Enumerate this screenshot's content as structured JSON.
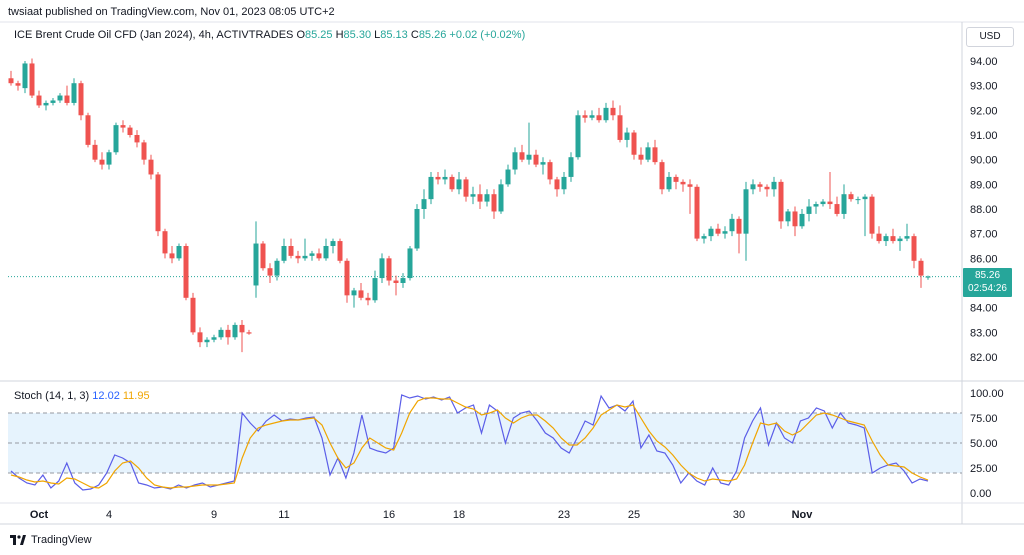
{
  "header": {
    "published": "twsiaat published on TradingView.com, Nov 01, 2023 08:05 UTC+2",
    "symbol": "ICE Brent Crude Oil CFD (Jan 2024), 4h, ACTIVTRADES",
    "o_label": "O",
    "o_value": "85.25",
    "h_label": "H",
    "h_value": "85.30",
    "l_label": "L",
    "l_value": "85.13",
    "c_label": "C",
    "c_value": "85.26",
    "change": "+0.02 (+0.02%)"
  },
  "currency": "USD",
  "last_price": "85.26",
  "countdown": "02:54:26",
  "brand": "TradingView",
  "colors": {
    "up": "#26a69a",
    "down": "#ef5350",
    "k_line": "#5b5ee8",
    "d_line": "#f0a500",
    "band": "#e3f2fd"
  },
  "chart_data": [
    {
      "type": "candlestick",
      "title": "ICE Brent Crude Oil CFD (Jan 2024), 4h, ACTIVTRADES",
      "ylim": [
        81.0,
        95.0
      ],
      "y_ticks": [
        "94.00",
        "93.00",
        "92.00",
        "91.00",
        "90.00",
        "89.00",
        "88.00",
        "87.00",
        "86.00",
        "85.00",
        "84.00",
        "83.00",
        "82.00"
      ],
      "x_ticks": [
        "Oct",
        "4",
        "9",
        "11",
        "16",
        "18",
        "23",
        "25",
        "30",
        "Nov"
      ],
      "x_tick_index": [
        4,
        14,
        29,
        39,
        54,
        64,
        79,
        89,
        104,
        113
      ],
      "last_close": 85.26,
      "candles": [
        [
          93.3,
          93.6,
          93.0,
          93.1
        ],
        [
          93.1,
          93.2,
          92.8,
          93.0
        ],
        [
          92.9,
          94.0,
          92.7,
          93.9
        ],
        [
          93.9,
          94.1,
          92.5,
          92.6
        ],
        [
          92.6,
          92.8,
          92.1,
          92.2
        ],
        [
          92.2,
          92.4,
          92.0,
          92.3
        ],
        [
          92.3,
          92.5,
          92.2,
          92.4
        ],
        [
          92.4,
          92.7,
          92.3,
          92.6
        ],
        [
          92.6,
          93.0,
          92.2,
          92.3
        ],
        [
          92.3,
          93.3,
          92.2,
          93.1
        ],
        [
          93.1,
          93.2,
          91.6,
          91.8
        ],
        [
          91.8,
          91.9,
          90.5,
          90.6
        ],
        [
          90.6,
          90.8,
          89.9,
          90.0
        ],
        [
          90.0,
          90.3,
          89.6,
          89.8
        ],
        [
          89.8,
          90.4,
          89.6,
          90.3
        ],
        [
          90.3,
          91.5,
          90.2,
          91.4
        ],
        [
          91.4,
          91.6,
          91.1,
          91.3
        ],
        [
          91.3,
          91.4,
          90.9,
          91.0
        ],
        [
          91.0,
          91.2,
          90.5,
          90.7
        ],
        [
          90.7,
          90.8,
          89.8,
          90.0
        ],
        [
          90.0,
          90.2,
          89.2,
          89.4
        ],
        [
          89.4,
          89.5,
          86.9,
          87.1
        ],
        [
          87.1,
          87.2,
          86.0,
          86.2
        ],
        [
          86.2,
          86.5,
          85.8,
          86.0
        ],
        [
          86.0,
          86.6,
          85.9,
          86.5
        ],
        [
          86.5,
          86.6,
          84.3,
          84.4
        ],
        [
          84.4,
          84.6,
          82.9,
          83.0
        ],
        [
          83.0,
          83.2,
          82.4,
          82.6
        ],
        [
          82.6,
          82.8,
          82.4,
          82.7
        ],
        [
          82.7,
          82.9,
          82.6,
          82.8
        ],
        [
          82.8,
          83.2,
          82.7,
          83.1
        ],
        [
          83.1,
          83.3,
          82.5,
          82.8
        ],
        [
          82.8,
          83.4,
          82.7,
          83.3
        ],
        [
          83.3,
          83.5,
          82.2,
          83.0
        ],
        [
          83.0,
          83.1,
          82.9,
          82.95
        ],
        [
          84.9,
          87.5,
          84.4,
          86.6
        ],
        [
          86.6,
          86.7,
          85.5,
          85.6
        ],
        [
          85.6,
          85.8,
          85.0,
          85.3
        ],
        [
          85.3,
          86.0,
          85.1,
          85.9
        ],
        [
          85.9,
          86.8,
          85.8,
          86.5
        ],
        [
          86.5,
          86.8,
          86.0,
          86.1
        ],
        [
          86.1,
          86.3,
          85.8,
          86.0
        ],
        [
          86.0,
          86.8,
          85.9,
          86.1
        ],
        [
          86.1,
          86.3,
          85.9,
          86.2
        ],
        [
          86.2,
          86.4,
          85.9,
          86.0
        ],
        [
          86.0,
          86.8,
          85.9,
          86.5
        ],
        [
          86.5,
          86.8,
          86.2,
          86.7
        ],
        [
          86.7,
          86.8,
          85.8,
          85.9
        ],
        [
          85.9,
          86.0,
          84.2,
          84.5
        ],
        [
          84.5,
          84.8,
          84.0,
          84.7
        ],
        [
          84.7,
          85.0,
          84.3,
          84.4
        ],
        [
          84.4,
          84.6,
          84.1,
          84.3
        ],
        [
          84.3,
          85.5,
          84.2,
          85.2
        ],
        [
          85.2,
          86.2,
          85.0,
          86.0
        ],
        [
          86.0,
          86.1,
          84.9,
          85.1
        ],
        [
          85.1,
          85.3,
          84.5,
          85.0
        ],
        [
          85.0,
          85.4,
          84.8,
          85.2
        ],
        [
          85.2,
          86.5,
          85.1,
          86.4
        ],
        [
          86.4,
          88.2,
          86.3,
          88.0
        ],
        [
          88.0,
          88.8,
          87.6,
          88.4
        ],
        [
          88.4,
          89.5,
          88.2,
          89.3
        ],
        [
          89.3,
          89.5,
          89.0,
          89.2
        ],
        [
          89.2,
          89.6,
          89.0,
          89.3
        ],
        [
          89.3,
          89.4,
          88.7,
          88.8
        ],
        [
          88.8,
          89.5,
          88.6,
          89.2
        ],
        [
          89.2,
          89.3,
          88.3,
          88.5
        ],
        [
          88.5,
          88.9,
          88.2,
          88.6
        ],
        [
          88.6,
          89.0,
          88.0,
          88.3
        ],
        [
          88.3,
          88.8,
          88.1,
          88.6
        ],
        [
          88.6,
          88.8,
          87.6,
          87.9
        ],
        [
          87.9,
          89.2,
          87.8,
          89.0
        ],
        [
          89.0,
          89.8,
          88.9,
          89.6
        ],
        [
          89.6,
          90.5,
          89.4,
          90.3
        ],
        [
          90.3,
          90.6,
          89.9,
          90.0
        ],
        [
          90.0,
          91.5,
          89.8,
          90.2
        ],
        [
          90.2,
          90.4,
          89.7,
          89.8
        ],
        [
          89.8,
          90.1,
          89.4,
          89.9
        ],
        [
          89.9,
          90.0,
          89.0,
          89.2
        ],
        [
          89.2,
          89.3,
          88.5,
          88.8
        ],
        [
          88.8,
          89.5,
          88.6,
          89.3
        ],
        [
          89.3,
          90.3,
          89.1,
          90.1
        ],
        [
          90.1,
          92.0,
          90.0,
          91.8
        ],
        [
          91.8,
          92.0,
          91.5,
          91.7
        ],
        [
          91.7,
          92.0,
          91.6,
          91.8
        ],
        [
          91.8,
          92.1,
          91.5,
          91.6
        ],
        [
          91.6,
          92.3,
          91.5,
          92.1
        ],
        [
          92.1,
          92.4,
          91.6,
          91.8
        ],
        [
          91.8,
          92.2,
          90.7,
          90.8
        ],
        [
          90.8,
          91.3,
          90.5,
          91.1
        ],
        [
          91.1,
          91.2,
          90.0,
          90.2
        ],
        [
          90.2,
          90.5,
          89.8,
          90.0
        ],
        [
          90.0,
          90.7,
          89.9,
          90.5
        ],
        [
          90.5,
          90.8,
          89.8,
          89.9
        ],
        [
          89.9,
          90.0,
          88.6,
          88.8
        ],
        [
          88.8,
          89.5,
          88.7,
          89.3
        ],
        [
          89.3,
          89.4,
          88.8,
          89.1
        ],
        [
          89.1,
          89.2,
          88.7,
          89.0
        ],
        [
          89.0,
          89.2,
          87.8,
          88.9
        ],
        [
          88.9,
          89.0,
          86.7,
          86.8
        ],
        [
          86.8,
          87.0,
          86.6,
          86.9
        ],
        [
          86.9,
          87.3,
          86.7,
          87.2
        ],
        [
          87.2,
          87.4,
          86.9,
          87.0
        ],
        [
          87.0,
          87.3,
          86.8,
          87.1
        ],
        [
          87.1,
          87.8,
          86.9,
          87.6
        ],
        [
          87.6,
          87.7,
          86.2,
          87.0
        ],
        [
          87.0,
          89.1,
          85.9,
          88.8
        ],
        [
          88.8,
          89.2,
          88.6,
          89.0
        ],
        [
          89.0,
          89.1,
          88.7,
          88.9
        ],
        [
          88.9,
          89.0,
          88.5,
          88.8
        ],
        [
          88.8,
          89.3,
          88.5,
          89.1
        ]
      ],
      "note": "",
      "extra_candles": [
        [
          89.1,
          89.2,
          87.2,
          87.5
        ],
        [
          87.5,
          88.0,
          87.3,
          87.9
        ],
        [
          87.9,
          88.1,
          86.9,
          87.3
        ],
        [
          87.3,
          88.0,
          87.2,
          87.8
        ],
        [
          87.8,
          88.4,
          87.5,
          88.1
        ],
        [
          88.1,
          88.3,
          87.8,
          88.2
        ],
        [
          88.2,
          88.4,
          88.1,
          88.3
        ],
        [
          88.3,
          89.5,
          88.0,
          88.2
        ],
        [
          88.2,
          88.5,
          87.7,
          87.8
        ],
        [
          87.8,
          89.0,
          87.6,
          88.6
        ],
        [
          88.6,
          88.7,
          88.3,
          88.4
        ],
        [
          88.4,
          88.5,
          88.2,
          88.4
        ],
        [
          88.4,
          88.6,
          86.9,
          88.5
        ],
        [
          88.5,
          88.6,
          86.8,
          87.0
        ],
        [
          87.0,
          87.3,
          86.6,
          86.7
        ],
        [
          86.7,
          87.0,
          86.5,
          86.9
        ],
        [
          86.9,
          87.2,
          86.6,
          86.7
        ],
        [
          86.7,
          86.9,
          86.3,
          86.8
        ],
        [
          86.8,
          87.4,
          86.7,
          86.9
        ],
        [
          86.9,
          87.0,
          85.6,
          85.9
        ],
        [
          85.9,
          86.0,
          84.8,
          85.3
        ],
        [
          85.25,
          85.3,
          85.13,
          85.26
        ]
      ]
    },
    {
      "type": "line",
      "title": "Stoch (14, 1, 3)",
      "ylim": [
        -5,
        105
      ],
      "y_ticks": [
        "100.00",
        "75.00",
        "50.00",
        "25.00",
        "0.00"
      ],
      "band": [
        20,
        80
      ],
      "series": [
        {
          "name": "12.02",
          "values": [
            22,
            15,
            10,
            8,
            18,
            5,
            12,
            30,
            10,
            3,
            4,
            8,
            20,
            38,
            35,
            30,
            10,
            8,
            5,
            6,
            4,
            8,
            5,
            8,
            10,
            6,
            8,
            10,
            12,
            80,
            70,
            62,
            72,
            78,
            72,
            74,
            73,
            75,
            76,
            55,
            18,
            35,
            15,
            40,
            78,
            45,
            42,
            40,
            45,
            98,
            95,
            97,
            94,
            96,
            93,
            96,
            80,
            85,
            88,
            60,
            88,
            82,
            50,
            75,
            80,
            82,
            72,
            60,
            55,
            45,
            40,
            55,
            72,
            68,
            97,
            85,
            88,
            82,
            92,
            45,
            58,
            42,
            40,
            28,
            10,
            20,
            12,
            8,
            25,
            10,
            8,
            22,
            55,
            72,
            85,
            48,
            70,
            55,
            50,
            72,
            75,
            85,
            82,
            65,
            80,
            70,
            68,
            65,
            20,
            25,
            28,
            30,
            22,
            10,
            14,
            12
          ]
        },
        {
          "name": "11.95",
          "values": [
            18,
            16,
            13,
            11,
            12,
            10,
            9,
            15,
            14,
            10,
            6,
            5,
            10,
            22,
            30,
            32,
            25,
            15,
            8,
            6,
            5,
            6,
            6,
            7,
            8,
            8,
            8,
            9,
            10,
            35,
            55,
            65,
            68,
            70,
            72,
            73,
            73,
            74,
            75,
            68,
            50,
            35,
            25,
            30,
            45,
            55,
            50,
            45,
            43,
            60,
            80,
            92,
            95,
            95,
            94,
            94,
            90,
            86,
            84,
            78,
            80,
            83,
            75,
            70,
            75,
            78,
            78,
            72,
            65,
            55,
            48,
            48,
            55,
            65,
            78,
            83,
            88,
            86,
            88,
            75,
            62,
            52,
            46,
            38,
            28,
            20,
            15,
            12,
            14,
            13,
            12,
            14,
            28,
            50,
            70,
            68,
            70,
            62,
            58,
            62,
            70,
            78,
            80,
            78,
            75,
            72,
            70,
            68,
            52,
            38,
            28,
            27,
            26,
            20,
            16,
            13
          ]
        }
      ]
    }
  ]
}
